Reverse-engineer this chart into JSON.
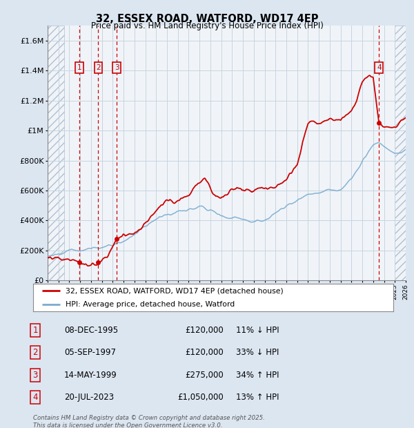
{
  "title": "32, ESSEX ROAD, WATFORD, WD17 4EP",
  "subtitle": "Price paid vs. HM Land Registry's House Price Index (HPI)",
  "ylim": [
    0,
    1700000
  ],
  "xlim_start": 1993.0,
  "xlim_end": 2026.0,
  "background_color": "#dce6f1",
  "plot_bg_color": "#e8eef5",
  "grid_color": "#c8d4e0",
  "sale_markers": [
    {
      "year": 1995.92,
      "price": 120000,
      "label": "1"
    },
    {
      "year": 1997.67,
      "price": 120000,
      "label": "2"
    },
    {
      "year": 1999.37,
      "price": 275000,
      "label": "3"
    },
    {
      "year": 2023.54,
      "price": 1050000,
      "label": "4"
    }
  ],
  "legend_line1": "32, ESSEX ROAD, WATFORD, WD17 4EP (detached house)",
  "legend_line2": "HPI: Average price, detached house, Watford",
  "table_entries": [
    {
      "num": "1",
      "date": "08-DEC-1995",
      "price": "£120,000",
      "hpi": "11% ↓ HPI"
    },
    {
      "num": "2",
      "date": "05-SEP-1997",
      "price": "£120,000",
      "hpi": "33% ↓ HPI"
    },
    {
      "num": "3",
      "date": "14-MAY-1999",
      "price": "£275,000",
      "hpi": "34% ↑ HPI"
    },
    {
      "num": "4",
      "date": "20-JUL-2023",
      "price": "£1,050,000",
      "hpi": "13% ↑ HPI"
    }
  ],
  "footer": "Contains HM Land Registry data © Crown copyright and database right 2025.\nThis data is licensed under the Open Government Licence v3.0.",
  "line_color_red": "#cc0000",
  "line_color_blue": "#7aabcf",
  "marker_box_color": "#cc0000",
  "hatch_left_end": 1994.5,
  "hatch_right_start": 2025.0
}
